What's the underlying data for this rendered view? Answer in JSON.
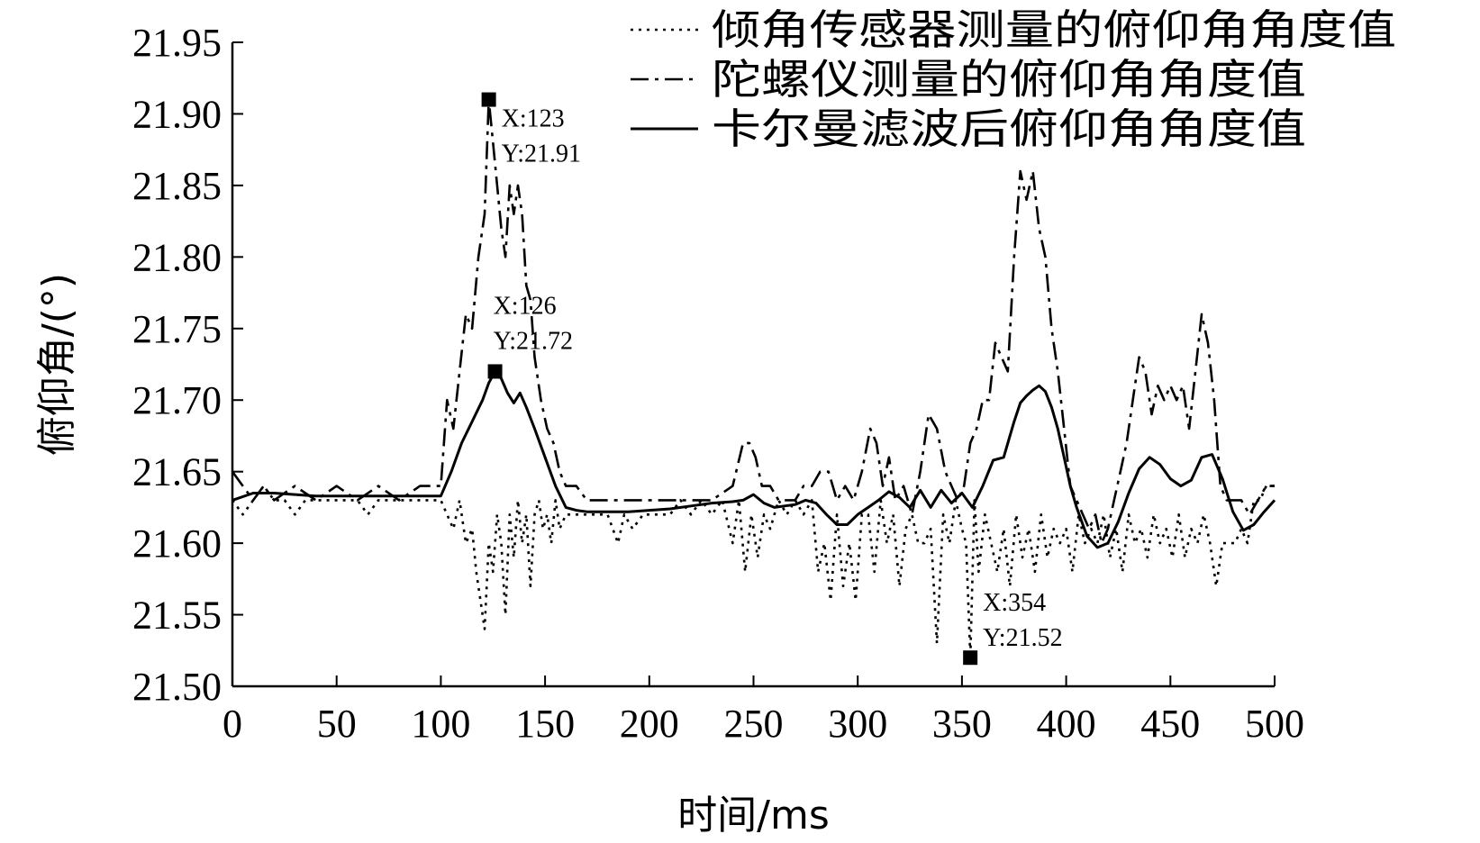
{
  "chart_data": {
    "type": "line",
    "title": "",
    "xlabel": "时间/ms",
    "ylabel": "俯仰角/(°)",
    "xlim": [
      0,
      500
    ],
    "ylim": [
      21.5,
      21.95
    ],
    "xticks": [
      "0",
      "50",
      "100",
      "150",
      "200",
      "250",
      "300",
      "350",
      "400",
      "450",
      "500"
    ],
    "xtick_values": [
      0,
      50,
      100,
      150,
      200,
      250,
      300,
      350,
      400,
      450,
      500
    ],
    "yticks": [
      "21.50",
      "21.55",
      "21.60",
      "21.65",
      "21.70",
      "21.75",
      "21.80",
      "21.85",
      "21.90",
      "21.95"
    ],
    "ytick_values": [
      21.5,
      21.55,
      21.6,
      21.65,
      21.7,
      21.75,
      21.8,
      21.85,
      21.9,
      21.95
    ],
    "grid": false,
    "legend_position": "top-right",
    "series": [
      {
        "name": "倾角传感器测量的俯仰角角度值",
        "style": "dotted",
        "color": "#000000",
        "x": [
          0,
          5,
          10,
          15,
          20,
          25,
          30,
          35,
          40,
          45,
          50,
          55,
          60,
          65,
          70,
          75,
          80,
          85,
          90,
          95,
          100,
          103,
          106,
          109,
          112,
          115,
          117,
          119,
          121,
          123,
          125,
          127,
          129,
          131,
          133,
          135,
          137,
          139,
          141,
          143,
          145,
          147,
          149,
          151,
          153,
          155,
          157,
          160,
          165,
          170,
          175,
          180,
          185,
          188,
          192,
          197,
          200,
          205,
          210,
          215,
          220,
          225,
          230,
          235,
          240,
          243,
          246,
          249,
          252,
          255,
          258,
          262,
          266,
          270,
          274,
          278,
          281,
          284,
          287,
          290,
          293,
          296,
          299,
          302,
          305,
          308,
          311,
          314,
          317,
          320,
          323,
          326,
          329,
          332,
          335,
          338,
          341,
          344,
          347,
          350,
          352,
          354,
          356,
          358,
          361,
          364,
          367,
          370,
          373,
          376,
          379,
          382,
          385,
          388,
          391,
          394,
          397,
          400,
          403,
          406,
          409,
          412,
          415,
          418,
          421,
          424,
          427,
          430,
          433,
          436,
          439,
          442,
          445,
          448,
          451,
          454,
          457,
          460,
          463,
          466,
          469,
          472,
          475,
          478,
          481,
          484,
          487,
          490,
          493,
          496,
          500
        ],
        "y": [
          21.63,
          21.62,
          21.63,
          21.64,
          21.63,
          21.63,
          21.62,
          21.63,
          21.63,
          21.63,
          21.63,
          21.63,
          21.63,
          21.62,
          21.63,
          21.63,
          21.63,
          21.63,
          21.63,
          21.63,
          21.63,
          21.62,
          21.61,
          21.63,
          21.6,
          21.61,
          21.58,
          21.56,
          21.54,
          21.6,
          21.58,
          21.62,
          21.6,
          21.55,
          21.62,
          21.59,
          21.63,
          21.6,
          21.62,
          21.57,
          21.62,
          21.63,
          21.61,
          21.62,
          21.6,
          21.63,
          21.61,
          21.62,
          21.62,
          21.62,
          21.62,
          21.62,
          21.6,
          21.62,
          21.61,
          21.62,
          21.62,
          21.62,
          21.62,
          21.63,
          21.62,
          21.63,
          21.62,
          21.63,
          21.6,
          21.63,
          21.58,
          21.62,
          21.59,
          21.62,
          21.61,
          21.63,
          21.62,
          21.63,
          21.62,
          21.63,
          21.58,
          21.6,
          21.56,
          21.62,
          21.57,
          21.6,
          21.56,
          21.62,
          21.62,
          21.58,
          21.63,
          21.6,
          21.62,
          21.57,
          21.61,
          21.62,
          21.6,
          21.6,
          21.61,
          21.53,
          21.62,
          21.6,
          21.63,
          21.61,
          21.6,
          21.52,
          21.63,
          21.58,
          21.62,
          21.6,
          21.58,
          21.61,
          21.57,
          21.62,
          21.59,
          21.61,
          21.58,
          21.62,
          21.59,
          21.61,
          21.6,
          21.61,
          21.58,
          21.62,
          21.6,
          21.61,
          21.6,
          21.62,
          21.59,
          21.61,
          21.58,
          21.62,
          21.6,
          21.61,
          21.59,
          21.62,
          21.6,
          21.61,
          21.59,
          21.62,
          21.59,
          21.61,
          21.6,
          21.62,
          21.6,
          21.57,
          21.6,
          21.6,
          21.6,
          21.61,
          21.6,
          21.63,
          21.63,
          21.64,
          21.64
        ]
      },
      {
        "name": "陀螺仪测量的俯仰角角度值",
        "style": "dashdot",
        "color": "#000000",
        "x": [
          0,
          5,
          10,
          15,
          20,
          30,
          40,
          50,
          60,
          70,
          80,
          90,
          95,
          100,
          103,
          106,
          109,
          112,
          115,
          118,
          121,
          123,
          125,
          127,
          129,
          131,
          133,
          135,
          137,
          139,
          141,
          143,
          145,
          148,
          151,
          154,
          157,
          160,
          165,
          170,
          180,
          190,
          200,
          210,
          220,
          230,
          240,
          245,
          248,
          251,
          254,
          258,
          262,
          266,
          270,
          274,
          278,
          282,
          286,
          290,
          294,
          298,
          302,
          306,
          309,
          312,
          315,
          318,
          322,
          326,
          330,
          334,
          338,
          342,
          345,
          348,
          351,
          354,
          357,
          360,
          363,
          366,
          369,
          372,
          375,
          378,
          381,
          384,
          387,
          390,
          393,
          396,
          399,
          402,
          405,
          408,
          411,
          414,
          417,
          420,
          423,
          426,
          429,
          432,
          435,
          438,
          441,
          444,
          447,
          450,
          453,
          456,
          459,
          462,
          465,
          468,
          471,
          474,
          477,
          480,
          484,
          488,
          492,
          496,
          500
        ],
        "y": [
          21.65,
          21.64,
          21.63,
          21.64,
          21.63,
          21.64,
          21.63,
          21.64,
          21.63,
          21.64,
          21.63,
          21.64,
          21.64,
          21.64,
          21.7,
          21.68,
          21.72,
          21.76,
          21.75,
          21.8,
          21.83,
          21.91,
          21.88,
          21.85,
          21.82,
          21.8,
          21.85,
          21.83,
          21.85,
          21.83,
          21.78,
          21.77,
          21.73,
          21.7,
          21.68,
          21.67,
          21.65,
          21.64,
          21.64,
          21.63,
          21.63,
          21.63,
          21.63,
          21.63,
          21.63,
          21.63,
          21.64,
          21.67,
          21.67,
          21.66,
          21.64,
          21.64,
          21.63,
          21.63,
          21.63,
          21.64,
          21.64,
          21.65,
          21.65,
          21.63,
          21.64,
          21.63,
          21.65,
          21.68,
          21.67,
          21.64,
          21.66,
          21.63,
          21.64,
          21.62,
          21.65,
          21.69,
          21.68,
          21.65,
          21.64,
          21.63,
          21.64,
          21.67,
          21.68,
          21.7,
          21.7,
          21.74,
          21.73,
          21.72,
          21.8,
          21.86,
          21.84,
          21.86,
          21.82,
          21.8,
          21.75,
          21.72,
          21.68,
          21.64,
          21.63,
          21.62,
          21.61,
          21.62,
          21.6,
          21.61,
          21.63,
          21.65,
          21.67,
          21.7,
          21.73,
          21.72,
          21.69,
          21.71,
          21.7,
          21.71,
          21.7,
          21.71,
          21.68,
          21.72,
          21.76,
          21.74,
          21.7,
          21.64,
          21.63,
          21.63,
          21.63,
          21.62,
          21.63,
          21.64,
          21.64
        ]
      },
      {
        "name": "卡尔曼滤波后俯仰角角度值",
        "style": "solid",
        "color": "#000000",
        "x": [
          0,
          10,
          20,
          30,
          40,
          50,
          60,
          70,
          80,
          90,
          100,
          105,
          110,
          115,
          120,
          123,
          126,
          129,
          132,
          135,
          138,
          141,
          145,
          150,
          155,
          160,
          165,
          170,
          180,
          190,
          200,
          210,
          220,
          230,
          240,
          245,
          250,
          255,
          260,
          270,
          275,
          280,
          285,
          290,
          295,
          300,
          305,
          310,
          315,
          320,
          325,
          330,
          335,
          340,
          345,
          350,
          355,
          360,
          365,
          370,
          375,
          378,
          381,
          384,
          387,
          390,
          393,
          396,
          399,
          402,
          405,
          410,
          415,
          420,
          425,
          430,
          435,
          440,
          445,
          450,
          455,
          460,
          465,
          470,
          475,
          480,
          485,
          490,
          495,
          500
        ],
        "y": [
          21.63,
          21.635,
          21.635,
          21.634,
          21.633,
          21.633,
          21.633,
          21.633,
          21.633,
          21.633,
          21.633,
          21.65,
          21.67,
          21.685,
          21.7,
          21.712,
          21.72,
          21.715,
          21.705,
          21.698,
          21.705,
          21.695,
          21.68,
          21.66,
          21.64,
          21.625,
          21.623,
          21.622,
          21.622,
          21.622,
          21.623,
          21.624,
          21.626,
          21.628,
          21.629,
          21.63,
          21.634,
          21.628,
          21.625,
          21.627,
          21.63,
          21.628,
          21.62,
          21.613,
          21.613,
          21.62,
          21.625,
          21.63,
          21.636,
          21.632,
          21.625,
          21.637,
          21.625,
          21.637,
          21.628,
          21.635,
          21.625,
          21.64,
          21.658,
          21.66,
          21.685,
          21.698,
          21.703,
          21.707,
          21.71,
          21.706,
          21.695,
          21.68,
          21.66,
          21.64,
          21.625,
          21.605,
          21.597,
          21.6,
          21.615,
          21.635,
          21.652,
          21.66,
          21.655,
          21.645,
          21.64,
          21.644,
          21.66,
          21.662,
          21.645,
          21.622,
          21.609,
          21.613,
          21.622,
          21.63
        ]
      }
    ],
    "annotations": [
      {
        "x": 123,
        "y": 21.91,
        "line1": "X:123",
        "line2": "Y:21.91"
      },
      {
        "x": 126,
        "y": 21.72,
        "line1": "X:126",
        "line2": "Y:21.72"
      },
      {
        "x": 354,
        "y": 21.52,
        "line1": "X:354",
        "line2": "Y:21.52"
      }
    ]
  }
}
